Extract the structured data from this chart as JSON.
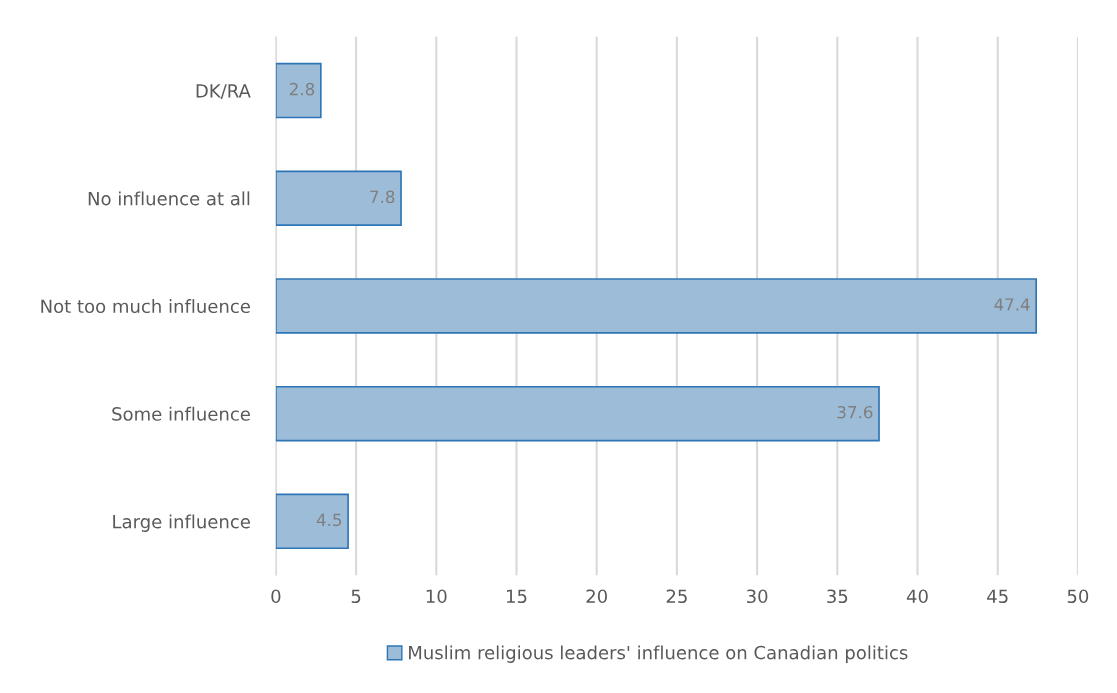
{
  "chart_data": {
    "type": "bar",
    "orientation": "horizontal",
    "categories": [
      "DK/RA",
      "No influence at all",
      "Not too much influence",
      "Some influence",
      "Large influence"
    ],
    "series": [
      {
        "name": "Muslim religious leaders' influence on Canadian politics",
        "color": "#9dbcd8",
        "values": [
          2.8,
          7.8,
          47.4,
          37.6,
          4.5
        ]
      }
    ],
    "xlim": [
      0,
      50
    ],
    "xticks": [
      0,
      5,
      10,
      15,
      20,
      25,
      30,
      35,
      40,
      45,
      50
    ],
    "grid": "x",
    "legend": "bottom",
    "data_labels": true
  }
}
